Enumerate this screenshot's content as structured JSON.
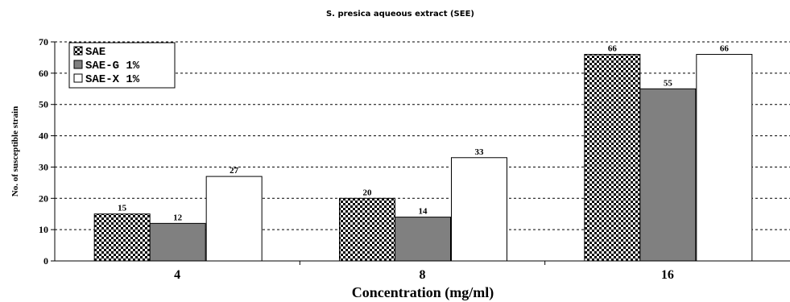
{
  "chart_data": {
    "type": "bar",
    "title": "S. presica  aqueous   extract (SEE)",
    "xlabel": "Concentration  (mg/ml)",
    "ylabel": "No. of susceptible strain",
    "ylim": [
      0,
      70
    ],
    "yticks": [
      0,
      10,
      20,
      30,
      40,
      50,
      60,
      70
    ],
    "grid": "horizontal dashed",
    "legend_position": "top-left",
    "categories": [
      "4",
      "8",
      "16"
    ],
    "series": [
      {
        "name": "SAE",
        "values": [
          15,
          20,
          66
        ],
        "labels": [
          "15",
          "20",
          "66"
        ],
        "color": "#ffffff",
        "pattern": "checker"
      },
      {
        "name": "SAE-G  1%",
        "values": [
          12,
          14,
          55
        ],
        "labels": [
          "12",
          "14",
          "55"
        ],
        "color": "#808080",
        "pattern": "solid"
      },
      {
        "name": "SAE-X  1%",
        "values": [
          27,
          33,
          66
        ],
        "labels": [
          "27",
          "33",
          "66"
        ],
        "color": "#ffffff",
        "pattern": "solid"
      }
    ]
  }
}
